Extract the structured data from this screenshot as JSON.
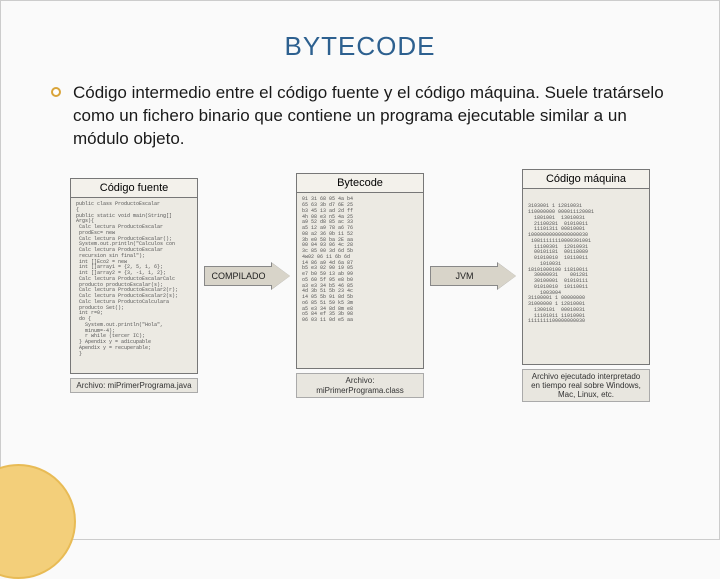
{
  "title": "BYTECODE",
  "body_text": "Código intermedio entre el código fuente y el código máquina. Suele tratárselo como un fichero binario que contiene un programa ejecutable similar a un módulo objeto.",
  "panels": {
    "source": {
      "header": "Código fuente",
      "code": "public class ProductoEscalar\n{\npublic static void main(String[]\nArgs){\n Calc lectura ProductoEscalar\n prodEsc= new\n Calc lectura ProductoEscalar();\n System.out.println(\"Calculos con\n Calc lectura ProductoEscalar\n recursion sin final\");\n int []Eco2 = new\n int []array1 = {2, 5, 1, 6};\n int []array2 = {3, -1, 1, 2};\n Calc lectura ProductoEscalarCalc\n producto productoEscalar(s);\n Calc lectura ProductoEscalar2(r);\n Calc lectura ProductoEscalar2(s);\n Calc lectura ProductoCalculara\n producto Set();\n int r=0;\n do {\n   System.out.println(\"Hola\",\n   minum=-4);\n   r while (tercer IC);\n } Apendix y = adicupable\n Apendix y = recuperable;\n }",
      "caption": "Archivo:\nmiPrimerPrograma.java"
    },
    "bytecode": {
      "header": "Bytecode",
      "code": "01 3i 68 05 4a b4\n65 63 3b d7 6E 25\nb3 45 13 ad 2d ff\n4h 08 e3 n5 4a 25\na9 52 d8 85 ac 33\na5 12 a9 78 a6 76\n08 a2 36 0b 11 52\n3b e0 58 ba 2E aa\n00 04 93 06 4c 28\n3c 85 00 3d 6d 5b\n4w02 06 11 6b 6d\n14 86 a9 4d 6a 87\nb5 e3 02 90 19 05\ne7 b0 59 13 ab 99\no5 60 5f 95 e8 b0\na3 e3 34 b5 46 85\n4d 3b 5i 5b 23 4c\ni4 05 5b 9i 8d 5b\no6 85 5i 59 k5 3m\na5 e3 34 8d 8m e8\no5 84 ef 35 3b 98\n06 03 11 0d e5 aa",
      "caption": "Archivo:\nmiPrimerPrograma.class"
    },
    "machine": {
      "header": "Código máquina",
      "code": "\n\n3103001 1 1281003i\n110000000 000011120081\n  1801001  1301003i\n  21100281  01010011\n  11101311 00810001\n10000000000000000030\n i0811111110000301001\n  11100301  12010931\n  00101181  00118089\n  01010010  10110011\n    101003i\n18101000100 11810011\n  30000931    001281\n  30100001  01010111\n  01010010  10110011\n    1003004\n31100001 1 00000000\n31000000 1 12810001\n  1300101  00010031\n  11101011 11010901\n1111111100000000030",
      "caption": "Archivo ejecutado interpretado\nen tiempo real sobre Windows,\nMac, Linux, etc."
    }
  },
  "arrows": {
    "compile": "COMPILADO",
    "jvm": "JVM"
  },
  "colors": {
    "title": "#2d608f",
    "bullet": "#d9a43a",
    "panel_bg": "#eceae3",
    "arrow_bg": "#d8d4c9",
    "circle": "#f3cf7a"
  }
}
